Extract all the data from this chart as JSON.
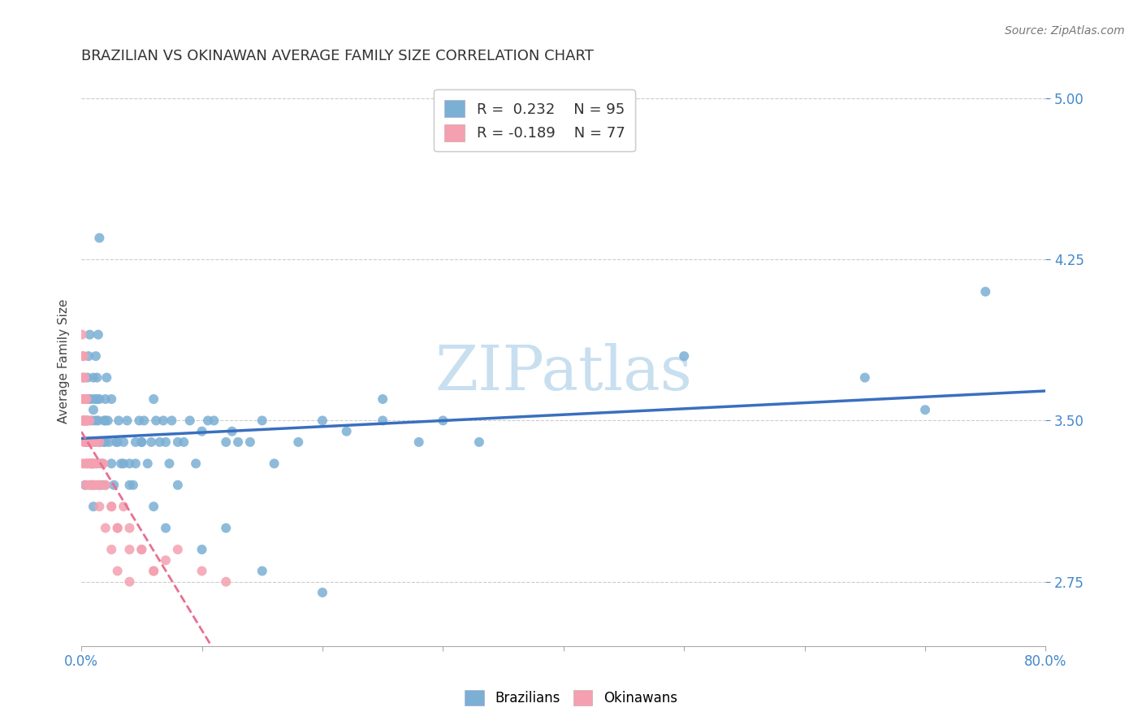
{
  "title": "BRAZILIAN VS OKINAWAN AVERAGE FAMILY SIZE CORRELATION CHART",
  "source": "Source: ZipAtlas.com",
  "ylabel": "Average Family Size",
  "xlim": [
    0.0,
    80.0
  ],
  "ylim": [
    2.45,
    5.1
  ],
  "yticks": [
    2.75,
    3.5,
    4.25,
    5.0
  ],
  "xticks": [
    0,
    10,
    20,
    30,
    40,
    50,
    60,
    70,
    80
  ],
  "brazilian_R": 0.232,
  "brazilian_N": 95,
  "okinawan_R": -0.189,
  "okinawan_N": 77,
  "blue_color": "#7BAFD4",
  "pink_color": "#F4A0B0",
  "blue_line_color": "#3A6FBF",
  "pink_line_color": "#E87090",
  "watermark": "ZIPatlas",
  "watermark_color": "#C8DFF0",
  "background_color": "#FFFFFF",
  "title_fontsize": 13,
  "legend_fontsize": 13,
  "axis_label_fontsize": 11,
  "tick_fontsize": 12,
  "tick_color": "#4488CC",
  "brazilian_x": [
    0.3,
    0.5,
    0.6,
    0.7,
    0.8,
    0.9,
    1.0,
    1.1,
    1.2,
    1.3,
    1.4,
    1.5,
    1.6,
    1.7,
    1.8,
    1.9,
    2.0,
    2.1,
    2.2,
    2.3,
    2.5,
    2.7,
    2.9,
    3.1,
    3.3,
    3.5,
    3.8,
    4.0,
    4.3,
    4.5,
    4.8,
    5.0,
    5.2,
    5.5,
    5.8,
    6.0,
    6.2,
    6.5,
    6.8,
    7.0,
    7.3,
    7.5,
    8.0,
    8.5,
    9.0,
    9.5,
    10.0,
    10.5,
    11.0,
    12.0,
    12.5,
    13.0,
    14.0,
    15.0,
    16.0,
    18.0,
    20.0,
    22.0,
    25.0,
    28.0,
    30.0,
    33.0,
    0.5,
    0.6,
    0.7,
    0.8,
    0.9,
    1.0,
    1.1,
    1.2,
    1.3,
    1.4,
    1.5,
    2.0,
    2.5,
    3.0,
    3.5,
    4.0,
    4.5,
    5.0,
    6.0,
    7.0,
    8.0,
    10.0,
    12.0,
    15.0,
    20.0,
    25.0,
    50.0,
    65.0,
    70.0,
    75.0,
    1.0,
    1.5,
    2.0
  ],
  "brazilian_y": [
    3.2,
    3.5,
    3.6,
    3.4,
    3.3,
    3.2,
    3.1,
    3.4,
    3.5,
    3.6,
    3.5,
    3.4,
    3.3,
    3.2,
    3.4,
    3.5,
    3.6,
    3.7,
    3.5,
    3.4,
    3.3,
    3.2,
    3.4,
    3.5,
    3.3,
    3.4,
    3.5,
    3.3,
    3.2,
    3.4,
    3.5,
    3.4,
    3.5,
    3.3,
    3.4,
    3.6,
    3.5,
    3.4,
    3.5,
    3.4,
    3.3,
    3.5,
    3.4,
    3.4,
    3.5,
    3.3,
    3.45,
    3.5,
    3.5,
    3.4,
    3.45,
    3.4,
    3.4,
    3.5,
    3.3,
    3.4,
    3.5,
    3.45,
    3.5,
    3.4,
    3.5,
    3.4,
    3.7,
    3.8,
    3.9,
    3.6,
    3.5,
    3.7,
    3.6,
    3.8,
    3.7,
    3.9,
    3.6,
    3.5,
    3.6,
    3.4,
    3.3,
    3.2,
    3.3,
    3.4,
    3.1,
    3.0,
    3.2,
    2.9,
    3.0,
    2.8,
    2.7,
    3.6,
    3.8,
    3.7,
    3.55,
    4.1,
    3.55,
    4.35,
    3.4
  ],
  "okinawan_x": [
    0.1,
    0.15,
    0.2,
    0.25,
    0.3,
    0.35,
    0.4,
    0.5,
    0.6,
    0.7,
    0.8,
    0.9,
    1.0,
    1.1,
    1.2,
    1.3,
    1.4,
    1.5,
    1.8,
    2.0,
    2.5,
    3.0,
    3.5,
    4.0,
    5.0,
    6.0,
    7.0,
    8.0,
    10.0,
    12.0,
    0.1,
    0.12,
    0.15,
    0.18,
    0.2,
    0.22,
    0.25,
    0.28,
    0.3,
    0.35,
    0.4,
    0.45,
    0.5,
    0.6,
    0.7,
    0.8,
    0.9,
    1.0,
    1.2,
    1.5,
    1.8,
    2.0,
    2.5,
    3.0,
    4.0,
    5.0,
    6.0,
    0.05,
    0.08,
    0.1,
    0.15,
    0.2,
    0.25,
    0.3,
    0.35,
    0.4,
    0.5,
    0.6,
    0.7,
    0.8,
    1.0,
    1.2,
    1.5,
    2.0,
    2.5,
    3.0,
    4.0
  ],
  "okinawan_y": [
    3.3,
    3.5,
    3.6,
    3.4,
    3.3,
    3.2,
    3.4,
    3.3,
    3.2,
    3.4,
    3.3,
    3.2,
    3.3,
    3.2,
    3.4,
    3.3,
    3.2,
    3.4,
    3.3,
    3.2,
    3.1,
    3.0,
    3.1,
    3.0,
    2.9,
    2.8,
    2.85,
    2.9,
    2.8,
    2.75,
    3.5,
    3.6,
    3.7,
    3.5,
    3.8,
    3.6,
    3.5,
    3.7,
    3.6,
    3.5,
    3.4,
    3.6,
    3.5,
    3.4,
    3.5,
    3.4,
    3.3,
    3.4,
    3.3,
    3.2,
    3.3,
    3.2,
    3.1,
    3.0,
    2.9,
    2.9,
    2.8,
    3.9,
    3.8,
    3.7,
    3.5,
    3.6,
    3.4,
    3.5,
    3.4,
    3.5,
    3.3,
    3.4,
    3.3,
    3.2,
    3.3,
    3.2,
    3.1,
    3.0,
    2.9,
    2.8,
    2.75
  ]
}
